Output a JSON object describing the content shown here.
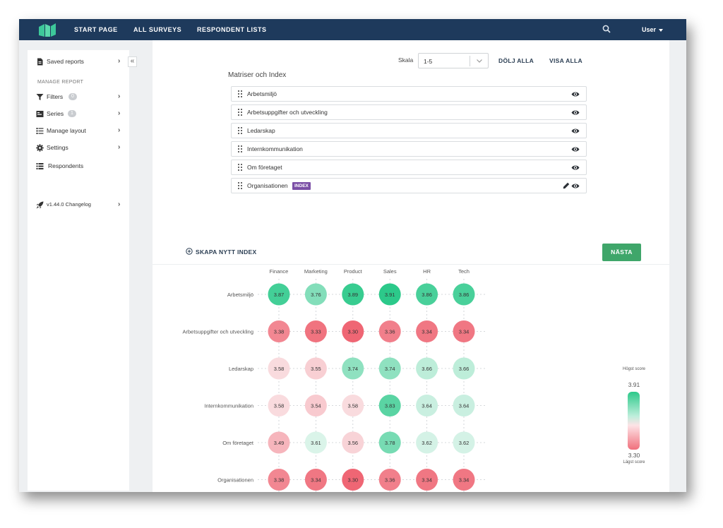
{
  "nav": {
    "links": [
      "START PAGE",
      "ALL SURVEYS",
      "RESPONDENT LISTS"
    ],
    "user": "User",
    "icons": {
      "logo": "logo-mark-icon",
      "search": "search-icon"
    },
    "colors": {
      "bar": "#1e3a5c",
      "logo": "#3dc89a"
    }
  },
  "sidebar": {
    "saved_reports": "Saved reports",
    "section": "MANAGE REPORT",
    "filters": {
      "label": "Filters",
      "count": "0"
    },
    "series": {
      "label": "Series",
      "count": "1"
    },
    "manage_layout": "Manage layout",
    "settings": "Settings",
    "respondents": "Respondents",
    "changelog": "v1.44.0 Changelog",
    "collapse": "«"
  },
  "toolbar": {
    "scale_label": "Skala",
    "scale_value": "1-5",
    "hide_all": "DÖLJ ALLA",
    "show_all": "VISA ALLA"
  },
  "matrices": {
    "title": "Matriser och Index",
    "items": [
      {
        "label": "Arbetsmiljö"
      },
      {
        "label": "Arbetsuppgifter och utveckling"
      },
      {
        "label": "Ledarskap"
      },
      {
        "label": "Internkommunikation"
      },
      {
        "label": "Om företaget"
      },
      {
        "label": "Organisationen",
        "badge": "INDEX"
      }
    ]
  },
  "actions": {
    "create_index": "SKAPA NYTT INDEX",
    "next": "NÄSTA",
    "next_color": "#3fa66a"
  },
  "chart_data": {
    "type": "heatmap",
    "columns": [
      "Finance",
      "Marketing",
      "Product",
      "Sales",
      "HR",
      "Tech"
    ],
    "rows": [
      "Arbetsmiljö",
      "Arbetsuppgifter och utveckling",
      "Ledarskap",
      "Internkommunikation",
      "Om företaget",
      "Organisationen"
    ],
    "values": [
      [
        3.87,
        3.76,
        3.89,
        3.91,
        3.86,
        3.86
      ],
      [
        3.38,
        3.33,
        3.3,
        3.36,
        3.34,
        3.34
      ],
      [
        3.58,
        3.55,
        3.74,
        3.74,
        3.66,
        3.66
      ],
      [
        3.58,
        3.54,
        3.58,
        3.83,
        3.64,
        3.64
      ],
      [
        3.49,
        3.61,
        3.56,
        3.78,
        3.62,
        3.62
      ],
      [
        3.38,
        3.34,
        3.3,
        3.36,
        3.34,
        3.34
      ]
    ],
    "min": 3.3,
    "max": 3.91,
    "colors": {
      "high": "#2cc98a",
      "low": "#ef6674"
    },
    "legend": {
      "top_label": "Högst score",
      "top_value": "3.91",
      "bottom_value": "3.30",
      "bottom_label": "Lägst score"
    }
  }
}
